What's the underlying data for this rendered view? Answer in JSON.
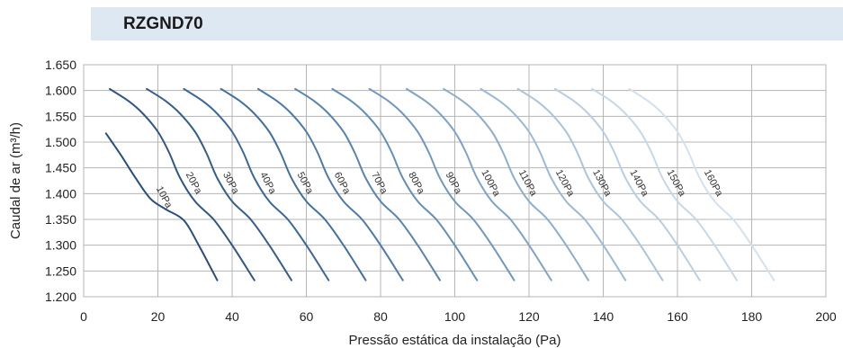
{
  "header": {
    "title": "RZGND70",
    "band_color": "#dde8f3"
  },
  "chart_data": {
    "type": "line",
    "title": "RZGND70",
    "xlabel": "Pressão estática da instalação (Pa)",
    "ylabel": "Caudal de ar (m³/h)",
    "xlim": [
      0,
      200
    ],
    "ylim": [
      1200,
      1650
    ],
    "x_ticks": [
      0,
      20,
      40,
      60,
      80,
      100,
      120,
      140,
      160,
      180,
      200
    ],
    "y_ticks": [
      1200,
      1250,
      1300,
      1350,
      1400,
      1450,
      1500,
      1550,
      1600,
      1650
    ],
    "x_tick_labels": [
      "0",
      "20",
      "40",
      "60",
      "80",
      "100",
      "120",
      "140",
      "160",
      "180",
      "200"
    ],
    "y_tick_labels": [
      "1.200",
      "1.250",
      "1.300",
      "1.350",
      "1.400",
      "1.450",
      "1.500",
      "1.550",
      "1.600",
      "1.650"
    ],
    "grid": true,
    "legend": "none (curves labelled inline)",
    "series": [
      {
        "name": "10Pa",
        "color": "#2a4e7c",
        "points": [
          [
            6,
            1517
          ],
          [
            10,
            1475
          ],
          [
            14,
            1430
          ],
          [
            18,
            1390
          ],
          [
            22,
            1370
          ],
          [
            27,
            1348
          ],
          [
            31,
            1300
          ],
          [
            36,
            1232
          ]
        ]
      },
      {
        "name": "20Pa",
        "color": "#2f5684",
        "points": [
          [
            7,
            1603
          ],
          [
            12,
            1580
          ],
          [
            16,
            1555
          ],
          [
            20,
            1520
          ],
          [
            23,
            1480
          ],
          [
            26,
            1430
          ],
          [
            30,
            1385
          ],
          [
            35,
            1350
          ],
          [
            40,
            1300
          ],
          [
            46,
            1232
          ]
        ]
      },
      {
        "name": "30Pa",
        "color": "#355e8d",
        "points": [
          [
            17,
            1603
          ],
          [
            22,
            1580
          ],
          [
            26,
            1555
          ],
          [
            30,
            1520
          ],
          [
            33,
            1480
          ],
          [
            36,
            1430
          ],
          [
            40,
            1385
          ],
          [
            45,
            1350
          ],
          [
            50,
            1300
          ],
          [
            56,
            1232
          ]
        ]
      },
      {
        "name": "40Pa",
        "color": "#3c6796",
        "points": [
          [
            27,
            1603
          ],
          [
            32,
            1580
          ],
          [
            36,
            1555
          ],
          [
            40,
            1520
          ],
          [
            43,
            1480
          ],
          [
            46,
            1430
          ],
          [
            50,
            1385
          ],
          [
            55,
            1350
          ],
          [
            60,
            1300
          ],
          [
            66,
            1232
          ]
        ]
      },
      {
        "name": "50Pa",
        "color": "#44709e",
        "points": [
          [
            37,
            1603
          ],
          [
            42,
            1580
          ],
          [
            46,
            1555
          ],
          [
            50,
            1520
          ],
          [
            53,
            1480
          ],
          [
            56,
            1430
          ],
          [
            60,
            1385
          ],
          [
            65,
            1350
          ],
          [
            70,
            1300
          ],
          [
            76,
            1232
          ]
        ]
      },
      {
        "name": "60Pa",
        "color": "#4d7aa7",
        "points": [
          [
            47,
            1603
          ],
          [
            52,
            1580
          ],
          [
            56,
            1555
          ],
          [
            60,
            1520
          ],
          [
            63,
            1480
          ],
          [
            66,
            1430
          ],
          [
            70,
            1385
          ],
          [
            75,
            1350
          ],
          [
            80,
            1300
          ],
          [
            86,
            1232
          ]
        ]
      },
      {
        "name": "70Pa",
        "color": "#5884af",
        "points": [
          [
            57,
            1603
          ],
          [
            62,
            1580
          ],
          [
            66,
            1555
          ],
          [
            70,
            1520
          ],
          [
            73,
            1480
          ],
          [
            76,
            1430
          ],
          [
            80,
            1385
          ],
          [
            85,
            1350
          ],
          [
            90,
            1300
          ],
          [
            96,
            1232
          ]
        ]
      },
      {
        "name": "80Pa",
        "color": "#638eb6",
        "points": [
          [
            67,
            1603
          ],
          [
            72,
            1580
          ],
          [
            76,
            1555
          ],
          [
            80,
            1520
          ],
          [
            83,
            1480
          ],
          [
            86,
            1430
          ],
          [
            90,
            1385
          ],
          [
            95,
            1350
          ],
          [
            100,
            1300
          ],
          [
            106,
            1232
          ]
        ]
      },
      {
        "name": "90Pa",
        "color": "#7098be",
        "points": [
          [
            77,
            1603
          ],
          [
            82,
            1580
          ],
          [
            86,
            1555
          ],
          [
            90,
            1520
          ],
          [
            93,
            1480
          ],
          [
            96,
            1430
          ],
          [
            100,
            1385
          ],
          [
            105,
            1350
          ],
          [
            110,
            1300
          ],
          [
            116,
            1232
          ]
        ]
      },
      {
        "name": "100Pa",
        "color": "#7ea3c6",
        "points": [
          [
            87,
            1603
          ],
          [
            92,
            1580
          ],
          [
            96,
            1555
          ],
          [
            100,
            1520
          ],
          [
            103,
            1480
          ],
          [
            106,
            1430
          ],
          [
            110,
            1385
          ],
          [
            115,
            1350
          ],
          [
            120,
            1300
          ],
          [
            126,
            1232
          ]
        ]
      },
      {
        "name": "110Pa",
        "color": "#8caecd",
        "points": [
          [
            97,
            1603
          ],
          [
            102,
            1580
          ],
          [
            106,
            1555
          ],
          [
            110,
            1520
          ],
          [
            113,
            1480
          ],
          [
            116,
            1430
          ],
          [
            120,
            1385
          ],
          [
            125,
            1350
          ],
          [
            130,
            1300
          ],
          [
            136,
            1232
          ]
        ]
      },
      {
        "name": "120Pa",
        "color": "#9bb9d4",
        "points": [
          [
            107,
            1603
          ],
          [
            112,
            1580
          ],
          [
            116,
            1555
          ],
          [
            120,
            1520
          ],
          [
            123,
            1480
          ],
          [
            126,
            1430
          ],
          [
            130,
            1385
          ],
          [
            135,
            1350
          ],
          [
            140,
            1300
          ],
          [
            146,
            1232
          ]
        ]
      },
      {
        "name": "130Pa",
        "color": "#aac4db",
        "points": [
          [
            117,
            1603
          ],
          [
            122,
            1580
          ],
          [
            126,
            1555
          ],
          [
            130,
            1520
          ],
          [
            133,
            1480
          ],
          [
            136,
            1430
          ],
          [
            140,
            1385
          ],
          [
            145,
            1350
          ],
          [
            150,
            1300
          ],
          [
            156,
            1232
          ]
        ]
      },
      {
        "name": "140Pa",
        "color": "#b8cee2",
        "points": [
          [
            127,
            1603
          ],
          [
            132,
            1580
          ],
          [
            136,
            1555
          ],
          [
            140,
            1520
          ],
          [
            143,
            1480
          ],
          [
            146,
            1430
          ],
          [
            150,
            1385
          ],
          [
            155,
            1350
          ],
          [
            160,
            1300
          ],
          [
            166,
            1232
          ]
        ]
      },
      {
        "name": "150Pa",
        "color": "#c6d8e8",
        "points": [
          [
            137,
            1603
          ],
          [
            142,
            1580
          ],
          [
            146,
            1555
          ],
          [
            150,
            1520
          ],
          [
            153,
            1480
          ],
          [
            156,
            1430
          ],
          [
            160,
            1385
          ],
          [
            165,
            1350
          ],
          [
            170,
            1300
          ],
          [
            176,
            1232
          ]
        ]
      },
      {
        "name": "160Pa",
        "color": "#d3e1ee",
        "points": [
          [
            147,
            1603
          ],
          [
            152,
            1580
          ],
          [
            156,
            1555
          ],
          [
            160,
            1520
          ],
          [
            163,
            1480
          ],
          [
            166,
            1430
          ],
          [
            170,
            1385
          ],
          [
            175,
            1350
          ],
          [
            180,
            1300
          ],
          [
            186,
            1232
          ]
        ]
      }
    ]
  }
}
